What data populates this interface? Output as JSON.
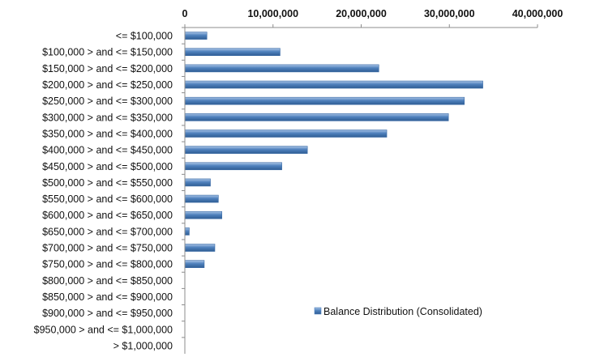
{
  "chart_data": {
    "type": "bar",
    "orientation": "horizontal",
    "categories": [
      "<= $100,000",
      "$100,000 > and <= $150,000",
      "$150,000 > and <= $200,000",
      "$200,000 > and <= $250,000",
      "$250,000 > and <= $300,000",
      "$300,000 > and <= $350,000",
      "$350,000 > and <= $400,000",
      "$400,000 > and <= $450,000",
      "$450,000 > and <= $500,000",
      "$500,000 > and <= $550,000",
      "$550,000 > and <= $600,000",
      "$600,000 > and <= $650,000",
      "$650,000 > and <= $700,000",
      "$700,000 > and <= $750,000",
      "$750,000 > and <= $800,000",
      "$800,000 > and <= $850,000",
      "$850,000 > and <= $900,000",
      "$900,000 > and <= $950,000",
      "$950,000 > and <= $1,000,000",
      "> $1,000,000"
    ],
    "series": [
      {
        "name": "Balance Distribution (Consolidated)",
        "color": "#4f81bd",
        "values": [
          2500000,
          10800000,
          22000000,
          33800000,
          31700000,
          29900000,
          22900000,
          13900000,
          11000000,
          2900000,
          3800000,
          4200000,
          500000,
          3400000,
          2200000,
          0,
          0,
          0,
          0,
          0
        ]
      }
    ],
    "xticks": [
      "0",
      "10,000,000",
      "20,000,000",
      "30,000,000",
      "40,000,000"
    ],
    "xlim": [
      0,
      40000000
    ],
    "axis_position": "top",
    "grid": false,
    "legend_position": "right",
    "title": "",
    "xlabel": "",
    "ylabel": ""
  }
}
